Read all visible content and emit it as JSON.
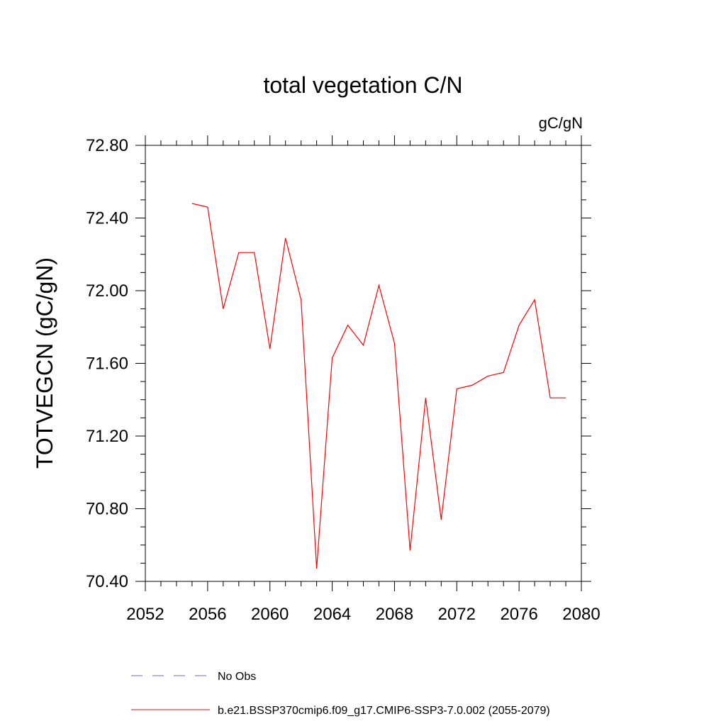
{
  "chart_data": {
    "type": "line",
    "title": "total vegetation C/N",
    "units_label": "gC/gN",
    "xlabel": "",
    "ylabel": "TOTVEGCN  (gC/gN)",
    "xlim": [
      2052,
      2080
    ],
    "ylim": [
      70.4,
      72.8
    ],
    "x_ticks": [
      2052,
      2056,
      2060,
      2064,
      2068,
      2072,
      2076,
      2080
    ],
    "x_tick_labels": [
      "2052",
      "2056",
      "2060",
      "2064",
      "2068",
      "2072",
      "2076",
      "2080"
    ],
    "y_ticks": [
      70.4,
      70.8,
      71.2,
      71.6,
      72.0,
      72.4,
      72.8
    ],
    "y_tick_labels": [
      "70.40",
      "70.80",
      "71.20",
      "71.60",
      "72.00",
      "72.40",
      "72.80"
    ],
    "grid": false,
    "legend_position": "bottom",
    "series": [
      {
        "name": "b.e21.BSSP370cmip6.f09_g17.CMIP6-SSP3-7.0.002 (2055-2079)",
        "color": "#ff0000",
        "dash": "solid",
        "x": [
          2055,
          2056,
          2057,
          2058,
          2059,
          2060,
          2061,
          2062,
          2063,
          2064,
          2065,
          2066,
          2067,
          2068,
          2069,
          2070,
          2071,
          2072,
          2073,
          2074,
          2075,
          2076,
          2077,
          2078,
          2079
        ],
        "y": [
          72.48,
          72.46,
          71.9,
          72.21,
          72.21,
          71.68,
          72.29,
          71.95,
          70.47,
          71.63,
          71.81,
          71.7,
          72.03,
          71.71,
          70.57,
          71.41,
          70.74,
          71.46,
          71.48,
          71.53,
          71.55,
          71.81,
          71.95,
          71.41,
          71.41
        ]
      }
    ],
    "legend": [
      {
        "label": "No Obs",
        "color": "#6666cc",
        "dash": "dashed"
      },
      {
        "label": "b.e21.BSSP370cmip6.f09_g17.CMIP6-SSP3-7.0.002 (2055-2079)",
        "color": "#ff0000",
        "dash": "solid"
      }
    ]
  }
}
